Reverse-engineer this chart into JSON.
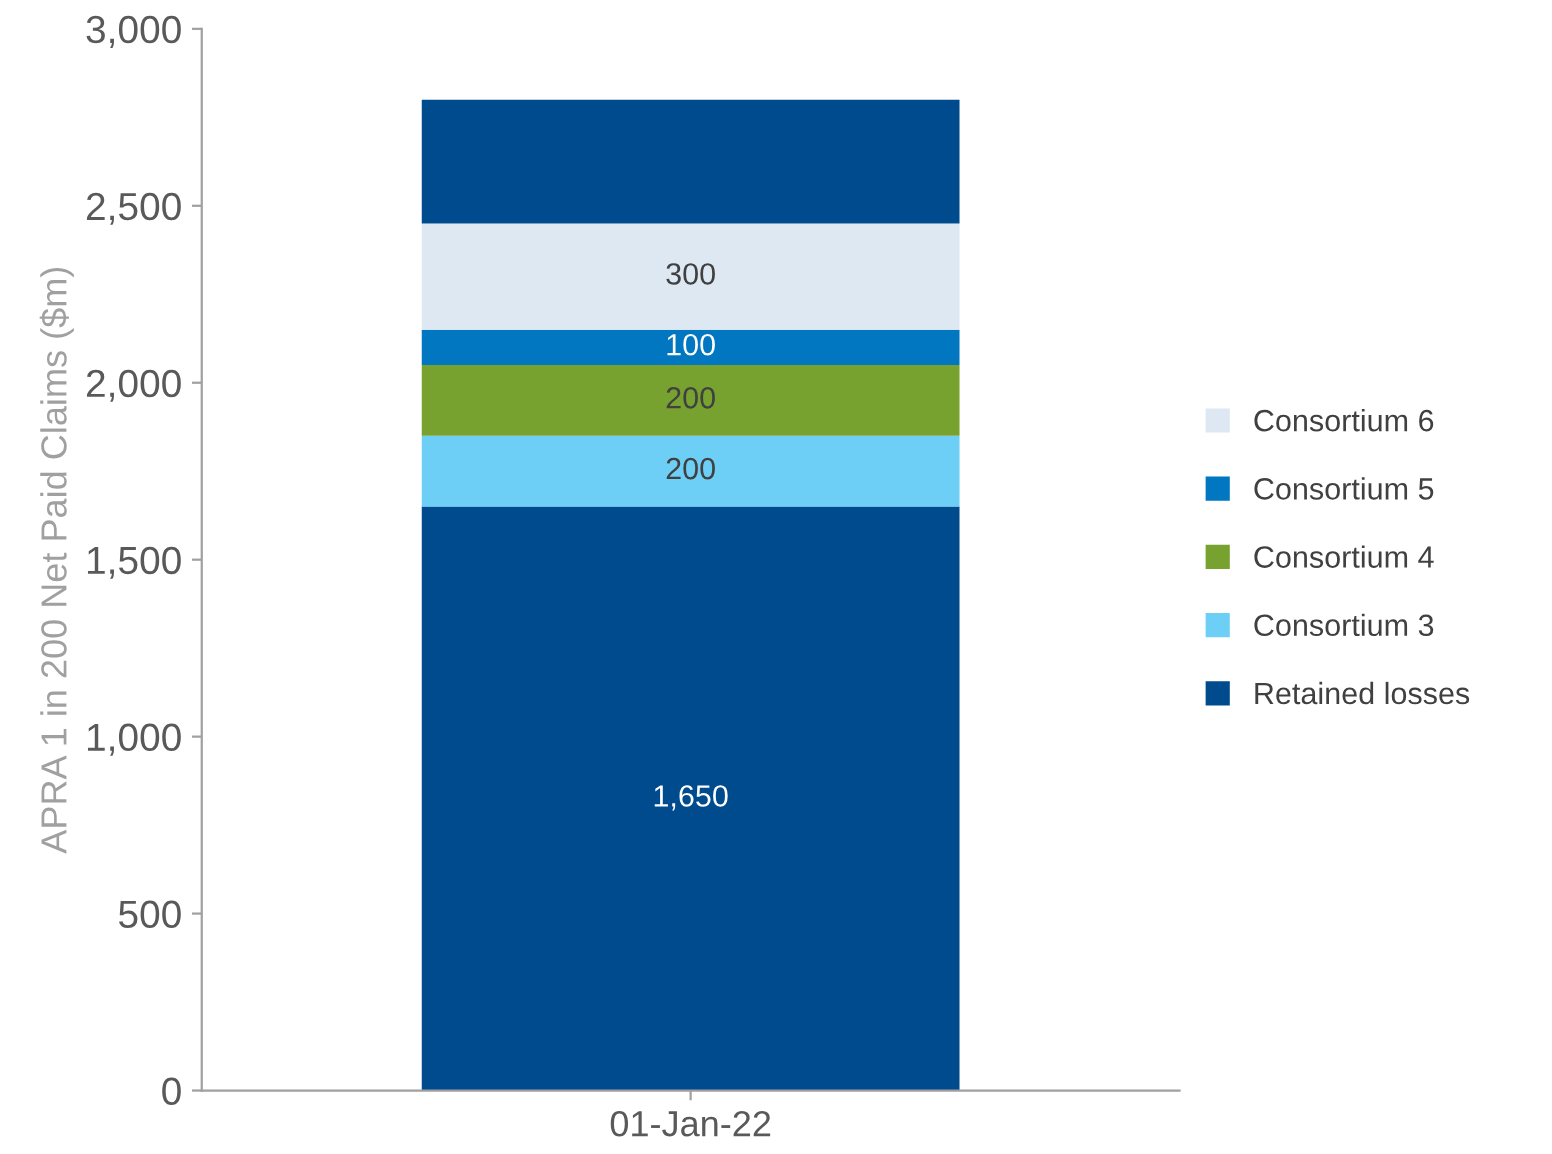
{
  "chart_data": {
    "type": "bar",
    "stacked": true,
    "ylabel": "APRA 1 in 200 Net Paid Claims ($m)",
    "categories": [
      "01-Jan-22"
    ],
    "series": [
      {
        "name": "Retained losses",
        "color": "#004b8d",
        "values": [
          1650
        ],
        "value_labels": [
          "1,650"
        ]
      },
      {
        "name": "Consortium 3",
        "color": "#6dcff6",
        "values": [
          200
        ],
        "value_labels": [
          "200"
        ]
      },
      {
        "name": "Consortium 4",
        "color": "#78a22f",
        "values": [
          200
        ],
        "value_labels": [
          "200"
        ]
      },
      {
        "name": "Consortium 5",
        "color": "#0077c0",
        "values": [
          100
        ],
        "value_labels": [
          "100"
        ]
      },
      {
        "name": "Consortium 6",
        "color": "#dde8f3",
        "values": [
          300
        ],
        "value_labels": [
          "300"
        ]
      },
      {
        "color": "#004b8d",
        "values": [
          350
        ]
      }
    ],
    "ylim": [
      0,
      3000
    ],
    "yticks": [
      0,
      {
        "value": 500,
        "label": "500"
      },
      {
        "value": 1000,
        "label": "1,000"
      },
      {
        "value": 1500,
        "label": "1,500"
      },
      {
        "value": 2000,
        "label": "2,000"
      },
      {
        "value": 2500,
        "label": "2,500"
      },
      {
        "value": 3000,
        "label": "3,000"
      }
    ],
    "grid": false,
    "legend": "right"
  }
}
